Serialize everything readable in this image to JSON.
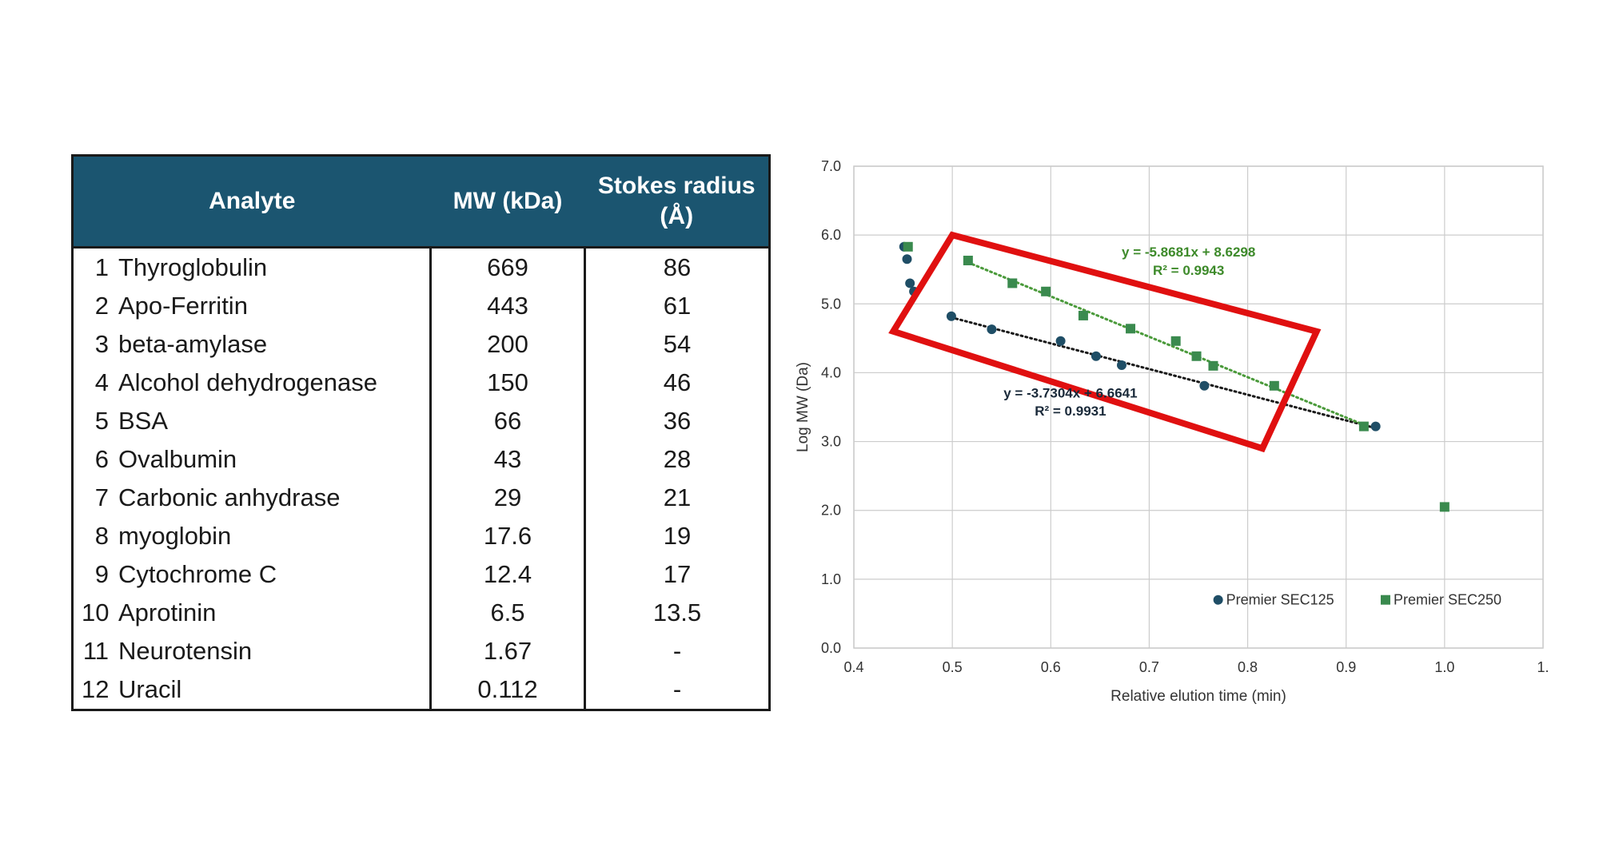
{
  "table": {
    "headers": [
      "Analyte",
      "MW (kDa)",
      "Stokes radius",
      "(Å)"
    ],
    "rows": [
      {
        "num": "1",
        "name": "Thyroglobulin",
        "mw": "669",
        "stokes": "86"
      },
      {
        "num": "2",
        "name": "Apo-Ferritin",
        "mw": "443",
        "stokes": "61"
      },
      {
        "num": "3",
        "name": "beta-amylase",
        "mw": "200",
        "stokes": "54"
      },
      {
        "num": "4",
        "name": "Alcohol dehydrogenase",
        "mw": "150",
        "stokes": "46"
      },
      {
        "num": "5",
        "name": "BSA",
        "mw": "66",
        "stokes": "36"
      },
      {
        "num": "6",
        "name": "Ovalbumin",
        "mw": "43",
        "stokes": "28"
      },
      {
        "num": "7",
        "name": "Carbonic anhydrase",
        "mw": "29",
        "stokes": "21"
      },
      {
        "num": "8",
        "name": "myoglobin",
        "mw": "17.6",
        "stokes": "19"
      },
      {
        "num": "9",
        "name": "Cytochrome C",
        "mw": "12.4",
        "stokes": "17"
      },
      {
        "num": "10",
        "name": "Aprotinin",
        "mw": "6.5",
        "stokes": "13.5"
      },
      {
        "num": "11",
        "name": "Neurotensin",
        "mw": "1.67",
        "stokes": "-"
      },
      {
        "num": "12",
        "name": "Uracil",
        "mw": "0.112",
        "stokes": "-"
      }
    ],
    "header_color": "#1b5570"
  },
  "chart_data": {
    "type": "scatter",
    "xlabel": "Relative elution time (min)",
    "ylabel": "Log MW (Da)",
    "xlim": [
      0.4,
      1.1
    ],
    "ylim": [
      0.0,
      7.0
    ],
    "x_ticks": [
      "0.4",
      "0.5",
      "0.6",
      "0.7",
      "0.8",
      "0.9",
      "1.0",
      "1."
    ],
    "y_ticks": [
      "0.0",
      "1.0",
      "2.0",
      "3.0",
      "4.0",
      "5.0",
      "6.0",
      "7.0"
    ],
    "grid": true,
    "legend_position": "bottom-right",
    "series": [
      {
        "name": "Premier SEC125",
        "color": "#1f4e66",
        "marker": "circle",
        "x": [
          0.451,
          0.454,
          0.457,
          0.461,
          0.499,
          0.54,
          0.61,
          0.646,
          0.672,
          0.756,
          0.93
        ],
        "y": [
          5.83,
          5.65,
          5.3,
          5.18,
          4.82,
          4.63,
          4.46,
          4.24,
          4.11,
          3.81,
          3.22
        ],
        "trendline": {
          "slope": -3.7304,
          "intercept": 6.6641,
          "x_from": 0.499,
          "x_to": 0.93,
          "equation": "y = -3.7304x + 6.6641",
          "r2": "R² = 0.9931"
        }
      },
      {
        "name": "Premier SEC250",
        "color": "#3a8a4e",
        "marker": "square",
        "x": [
          0.455,
          0.516,
          0.561,
          0.595,
          0.633,
          0.681,
          0.727,
          0.748,
          0.765,
          0.827,
          0.918,
          1.0
        ],
        "y": [
          5.83,
          5.63,
          5.3,
          5.18,
          4.83,
          4.64,
          4.46,
          4.24,
          4.1,
          3.81,
          3.22,
          2.05
        ],
        "trendline": {
          "slope": -5.8681,
          "intercept": 8.6298,
          "x_from": 0.516,
          "x_to": 0.918,
          "equation": "y = -5.8681x + 8.6298",
          "r2": "R² = 0.9943"
        }
      }
    ],
    "trendline_label_colors": {
      "sec125": "#1a2a3a",
      "sec250": "#3d8a2a"
    },
    "highlight": {
      "color": "#e01010"
    }
  }
}
